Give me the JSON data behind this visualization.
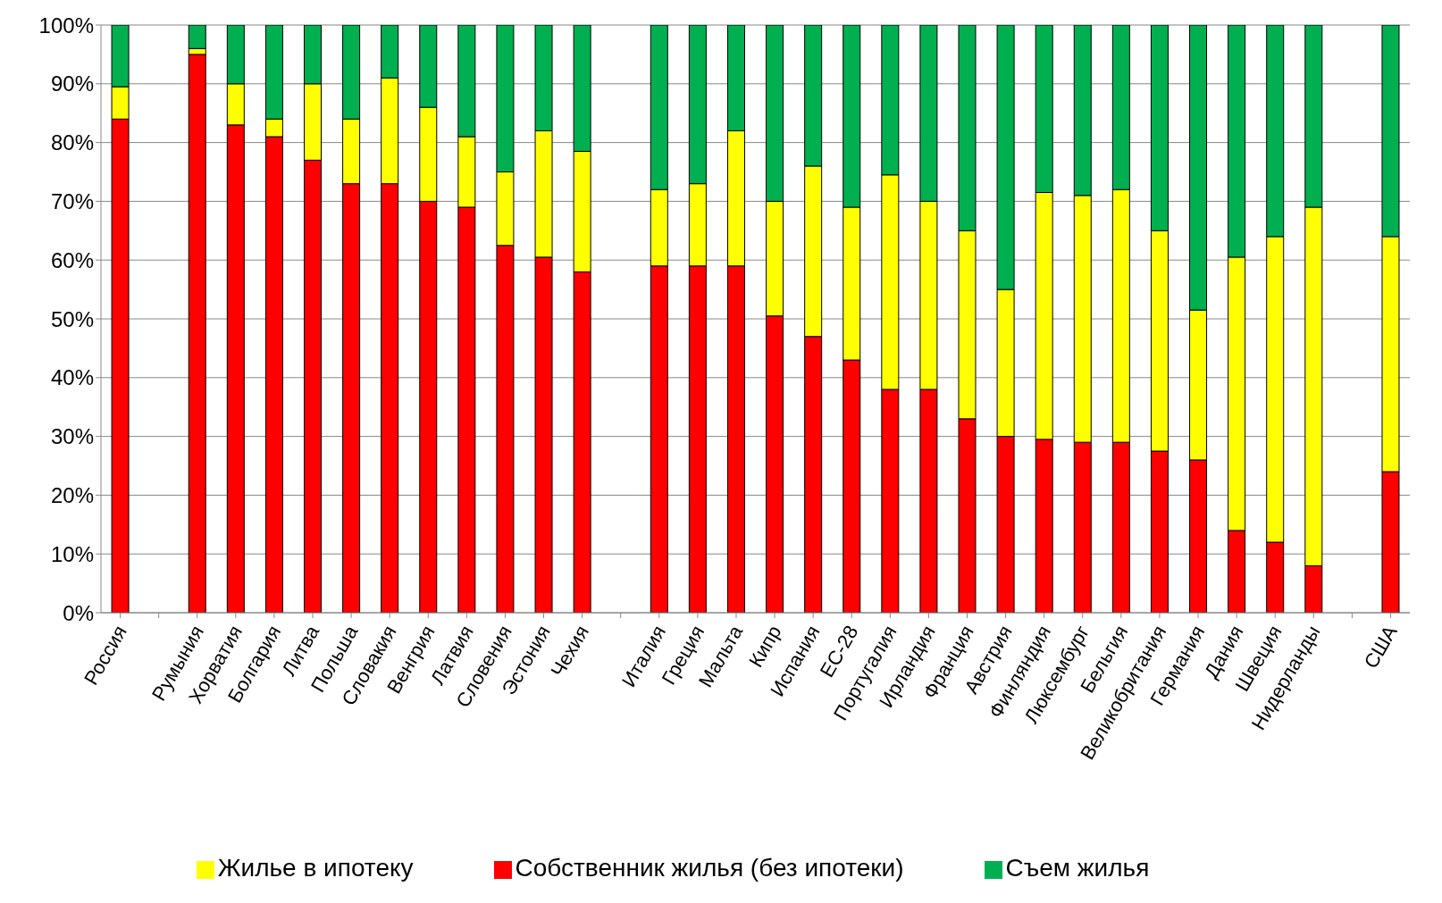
{
  "chart_data": {
    "type": "bar",
    "stacked": true,
    "categories": [
      "Россия",
      null,
      "Румыния",
      "Хорватия",
      "Болгария",
      "Литва",
      "Польша",
      "Словакия",
      "Венгрия",
      "Латвия",
      "Словения",
      "Эстония",
      "Чехия",
      null,
      "Италия",
      "Греция",
      "Мальта",
      "Кипр",
      "Испания",
      "ЕС-28",
      "Португалия",
      "Ирландия",
      "Франция",
      "Австрия",
      "Финляндия",
      "Люксембург",
      "Бельгия",
      "Великобритания",
      "Германия",
      "Дания",
      "Швеция",
      "Нидерланды",
      null,
      "США"
    ],
    "series": [
      {
        "name": "Собственник жилья (без ипотеки)",
        "color": "#ff0000",
        "values": [
          84,
          null,
          95,
          83,
          81,
          77,
          73,
          73,
          70,
          69,
          62.5,
          60.5,
          58,
          null,
          59,
          59,
          59,
          50.5,
          47,
          43,
          38,
          38,
          33,
          30,
          29.5,
          29,
          29,
          27.5,
          26,
          14,
          12,
          8,
          null,
          24
        ]
      },
      {
        "name": "Жилье в ипотеку",
        "color": "#ffff00",
        "values": [
          5.5,
          null,
          1,
          7,
          3,
          13,
          11,
          18,
          16,
          12,
          12.5,
          21.5,
          20.5,
          null,
          13,
          14,
          23,
          19.5,
          29,
          26,
          36.5,
          32,
          32,
          25,
          42,
          42,
          43,
          37.5,
          25.5,
          46.5,
          52,
          61,
          null,
          40
        ]
      },
      {
        "name": "Съем жилья",
        "color": "#00b050",
        "values": [
          10.5,
          null,
          4,
          10,
          16,
          10,
          16,
          9,
          14,
          19,
          25,
          18,
          21.5,
          null,
          28,
          27,
          18,
          30,
          24,
          31,
          25.5,
          30,
          35,
          45,
          28.5,
          29,
          28,
          35,
          48.5,
          39.5,
          36,
          31,
          null,
          36
        ]
      }
    ],
    "ylim": [
      0,
      100
    ],
    "yticks": [
      {
        "value": 0,
        "label": "0%"
      },
      {
        "value": 10,
        "label": "10%"
      },
      {
        "value": 20,
        "label": "20%"
      },
      {
        "value": 30,
        "label": "30%"
      },
      {
        "value": 40,
        "label": "40%"
      },
      {
        "value": 50,
        "label": "50%"
      },
      {
        "value": 60,
        "label": "60%"
      },
      {
        "value": 70,
        "label": "70%"
      },
      {
        "value": 80,
        "label": "80%"
      },
      {
        "value": 90,
        "label": "90%"
      },
      {
        "value": 100,
        "label": "100%"
      }
    ],
    "grid": "y",
    "legend": "bottom"
  }
}
